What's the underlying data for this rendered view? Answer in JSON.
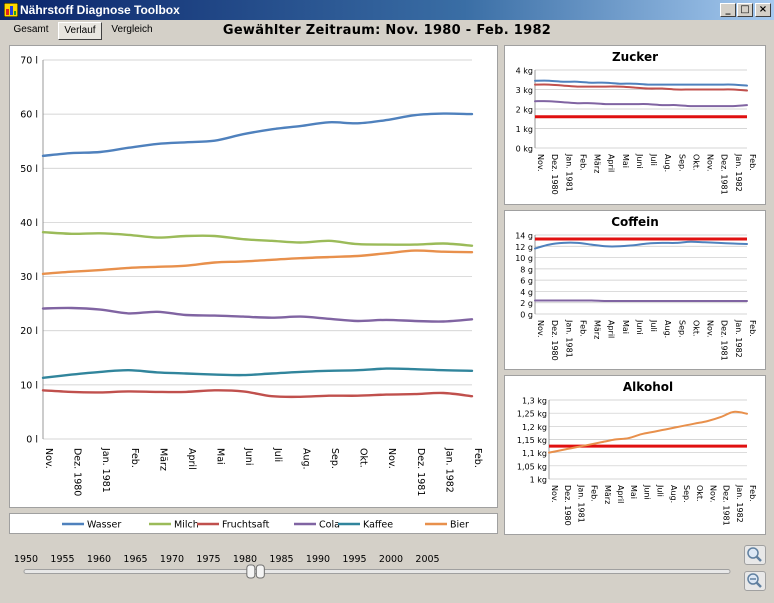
{
  "window": {
    "title": "Nährstoff Diagnose Toolbox",
    "minimize_label": "_",
    "maximize_label": "□",
    "close_label": "×"
  },
  "tabs": [
    {
      "label": "Gesamt"
    },
    {
      "label": "Verlauf",
      "active": true
    },
    {
      "label": "Vergleich"
    }
  ],
  "range_title": "Gewählter Zeitraum: Nov. 1980 - Feb. 1982",
  "colors": {
    "wasser": "#4f81bd",
    "milch": "#9bbb59",
    "fruchtsaft": "#c0504d",
    "cola": "#8064a2",
    "kaffee": "#31859c",
    "bier": "#e8904c",
    "threshold": "#e01010"
  },
  "chart_data": [
    {
      "type": "line",
      "categories": [
        "Nov.",
        "Dez. 1980",
        "Jan. 1981",
        "Feb.",
        "März",
        "April",
        "Mai",
        "Juni",
        "Juli",
        "Aug.",
        "Sep.",
        "Okt.",
        "Nov.",
        "Dez. 1981",
        "Jan. 1982",
        "Feb."
      ],
      "ylim": [
        0,
        70
      ],
      "yticks": [
        "0 l",
        "10 l",
        "20 l",
        "30 l",
        "40 l",
        "50 l",
        "60 l",
        "70 l"
      ],
      "series": [
        {
          "name": "Wasser",
          "color": "#4f81bd",
          "values": [
            52.3,
            52.8,
            53.0,
            53.8,
            54.5,
            54.8,
            55.1,
            56.3,
            57.2,
            57.8,
            58.5,
            58.3,
            58.9,
            59.8,
            60.1,
            60.0
          ]
        },
        {
          "name": "Milch",
          "color": "#9bbb59",
          "values": [
            38.2,
            37.9,
            38.0,
            37.7,
            37.2,
            37.5,
            37.5,
            36.9,
            36.6,
            36.3,
            36.6,
            36.0,
            35.9,
            35.9,
            36.1,
            35.7
          ]
        },
        {
          "name": "Fruchtsaft",
          "color": "#c0504d",
          "values": [
            9.0,
            8.7,
            8.6,
            8.8,
            8.7,
            8.7,
            9.0,
            8.8,
            7.9,
            7.8,
            8.0,
            8.0,
            8.2,
            8.3,
            8.5,
            7.9
          ]
        },
        {
          "name": "Cola",
          "color": "#8064a2",
          "values": [
            24.1,
            24.2,
            23.9,
            23.2,
            23.5,
            22.9,
            22.8,
            22.6,
            22.4,
            22.6,
            22.2,
            21.8,
            22.0,
            21.8,
            21.7,
            22.1
          ]
        },
        {
          "name": "Kaffee",
          "color": "#31859c",
          "values": [
            11.3,
            11.9,
            12.4,
            12.7,
            12.3,
            12.1,
            11.9,
            11.8,
            12.1,
            12.4,
            12.6,
            12.7,
            13.0,
            12.9,
            12.7,
            12.6
          ]
        },
        {
          "name": "Bier",
          "color": "#e8904c",
          "values": [
            30.5,
            30.9,
            31.2,
            31.6,
            31.8,
            32.0,
            32.6,
            32.8,
            33.1,
            33.4,
            33.6,
            33.8,
            34.3,
            34.8,
            34.6,
            34.5
          ]
        }
      ],
      "legend": "bottom"
    },
    {
      "type": "line",
      "title": "Zucker",
      "categories": [
        "Nov.",
        "Dez. 1980",
        "Jan. 1981",
        "Feb.",
        "März",
        "April",
        "Mai",
        "Juni",
        "Juli",
        "Aug.",
        "Sep.",
        "Okt.",
        "Nov.",
        "Dez. 1981",
        "Jan. 1982",
        "Feb."
      ],
      "ylim": [
        0,
        4
      ],
      "yticks": [
        "0 kg",
        "1 kg",
        "2 kg",
        "3 kg",
        "4 kg"
      ],
      "threshold": 1.6,
      "series": [
        {
          "color": "#4f81bd",
          "values": [
            3.45,
            3.45,
            3.4,
            3.4,
            3.35,
            3.35,
            3.3,
            3.3,
            3.25,
            3.25,
            3.25,
            3.25,
            3.25,
            3.25,
            3.25,
            3.2
          ]
        },
        {
          "color": "#c0504d",
          "values": [
            3.25,
            3.25,
            3.2,
            3.15,
            3.15,
            3.15,
            3.15,
            3.1,
            3.05,
            3.05,
            3.0,
            3.0,
            3.0,
            3.0,
            3.0,
            2.95
          ]
        },
        {
          "color": "#8064a2",
          "values": [
            2.4,
            2.4,
            2.35,
            2.3,
            2.3,
            2.25,
            2.25,
            2.25,
            2.25,
            2.2,
            2.2,
            2.15,
            2.15,
            2.15,
            2.15,
            2.2
          ]
        }
      ]
    },
    {
      "type": "line",
      "title": "Coffein",
      "categories": [
        "Nov.",
        "Dez. 1980",
        "Jan. 1981",
        "Feb.",
        "März",
        "April",
        "Mai",
        "Juni",
        "Juli",
        "Aug.",
        "Sep.",
        "Okt.",
        "Nov.",
        "Dez. 1981",
        "Jan. 1982",
        "Feb."
      ],
      "ylim": [
        0,
        14
      ],
      "yticks": [
        "0 g",
        "2 g",
        "4 g",
        "6 g",
        "8 g",
        "10 g",
        "12 g",
        "14 g"
      ],
      "threshold": 13.3,
      "series": [
        {
          "color": "#4f81bd",
          "values": [
            11.6,
            12.3,
            12.6,
            12.6,
            12.3,
            12.0,
            12.0,
            12.2,
            12.5,
            12.6,
            12.6,
            12.8,
            12.7,
            12.6,
            12.5,
            12.4
          ]
        },
        {
          "color": "#8064a2",
          "values": [
            2.4,
            2.4,
            2.4,
            2.4,
            2.4,
            2.3,
            2.3,
            2.3,
            2.3,
            2.3,
            2.3,
            2.3,
            2.3,
            2.3,
            2.3,
            2.3
          ]
        }
      ]
    },
    {
      "type": "line",
      "title": "Alkohol",
      "categories": [
        "Nov.",
        "Dez. 1980",
        "Jan. 1981",
        "Feb.",
        "März",
        "April",
        "Mai",
        "Juni",
        "Juli",
        "Aug.",
        "Sep.",
        "Okt.",
        "Nov.",
        "Dez. 1981",
        "Jan. 1982",
        "Feb."
      ],
      "ylim": [
        1.0,
        1.3
      ],
      "yticks": [
        "1 kg",
        "1,05 kg",
        "1,1 kg",
        "1,15 kg",
        "1,2 kg",
        "1,25 kg",
        "1,3 kg"
      ],
      "threshold": 1.125,
      "series": [
        {
          "color": "#e8904c",
          "values": [
            1.1,
            1.11,
            1.12,
            1.13,
            1.14,
            1.15,
            1.155,
            1.17,
            1.18,
            1.19,
            1.2,
            1.21,
            1.22,
            1.235,
            1.255,
            1.248
          ]
        }
      ]
    }
  ],
  "timeline": {
    "years": [
      "1950",
      "1955",
      "1960",
      "1965",
      "1970",
      "1975",
      "1980",
      "1985",
      "1990",
      "1995",
      "2000",
      "2005"
    ],
    "range_start": 1980.8,
    "range_end": 1982.1
  },
  "tools": {
    "zoom_in": "zoom-in-icon",
    "zoom_reset": "zoom-reset-icon"
  }
}
